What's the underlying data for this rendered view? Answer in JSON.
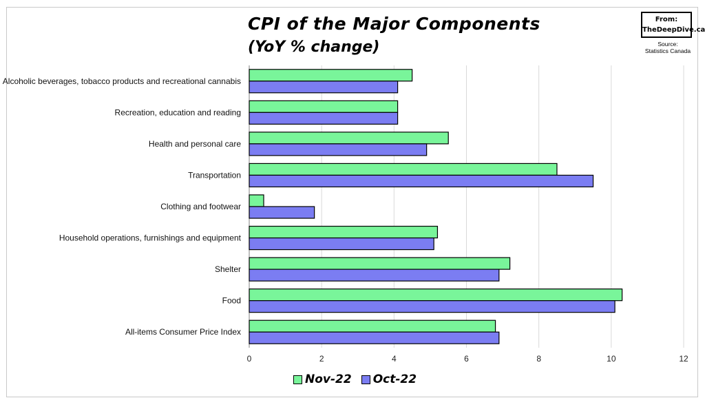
{
  "chart_data": {
    "type": "bar",
    "orientation": "horizontal",
    "title": "CPI of the Major Components",
    "subtitle": "(YoY % change)",
    "categories": [
      "Alcoholic beverages, tobacco products and recreational cannabis",
      "Recreation, education and reading",
      "Health and personal care",
      "Transportation",
      "Clothing and footwear",
      "Household operations, furnishings and equipment",
      "Shelter",
      "Food",
      "All-items Consumer Price Index"
    ],
    "series": [
      {
        "name": "Nov-22",
        "color": "#79f59a",
        "values": [
          4.5,
          4.1,
          5.5,
          8.5,
          0.4,
          5.2,
          7.2,
          10.3,
          6.8
        ]
      },
      {
        "name": "Oct-22",
        "color": "#7b7df2",
        "values": [
          4.1,
          4.1,
          4.9,
          9.5,
          1.8,
          5.1,
          6.9,
          10.1,
          6.9
        ]
      }
    ],
    "xlim": [
      0,
      12
    ],
    "xticks": [
      0,
      2,
      4,
      6,
      8,
      10,
      12
    ],
    "grid": true,
    "legend_position": "bottom"
  },
  "branding": {
    "line1": "From:",
    "line2": "TheDeepDive.ca"
  },
  "source": {
    "line1": "Source:",
    "line2": "Statistics Canada"
  }
}
